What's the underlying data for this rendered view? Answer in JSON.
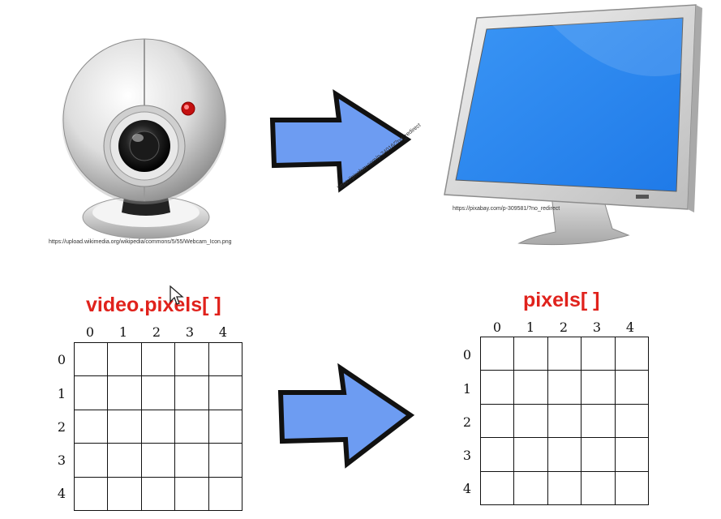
{
  "credits": {
    "webcam": "https://upload.wikimedia.org/wikipedia/commons/5/55/Webcam_Icon.png",
    "arrow": "https://pixabay.com/p-24016/?no_redirect",
    "monitor": "https://pixabay.com/p-309581/?no_redirect"
  },
  "left_grid": {
    "title": "video.pixels[ ]",
    "columns": [
      "0",
      "1",
      "2",
      "3",
      "4"
    ],
    "rows": [
      "0",
      "1",
      "2",
      "3",
      "4"
    ]
  },
  "right_grid": {
    "title": "pixels[ ]",
    "columns": [
      "0",
      "1",
      "2",
      "3",
      "4"
    ],
    "rows": [
      "0",
      "1",
      "2",
      "3",
      "4"
    ]
  },
  "colors": {
    "arrow_fill": "#6d9cf2",
    "screen_blue": "#2f8cf2",
    "title_red": "#e0221c"
  },
  "icons": [
    "webcam-icon",
    "arrow-right-icon",
    "monitor-icon",
    "mouse-cursor-icon"
  ]
}
